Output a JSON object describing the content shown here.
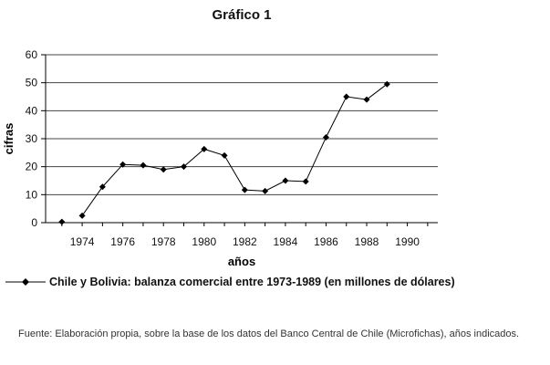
{
  "figure": {
    "title": "Gráfico 1",
    "source_note": "Fuente: Elaboración propia, sobre la base de los datos del Banco Central de Chile (Microfichas), años indicados."
  },
  "chart_data": {
    "type": "line",
    "xlabel": "años",
    "ylabel": "cifras",
    "ylim": [
      0,
      60
    ],
    "yticks": [
      0,
      10,
      20,
      30,
      40,
      50,
      60
    ],
    "xticks": [
      1974,
      1976,
      1978,
      1980,
      1982,
      1984,
      1986,
      1988,
      1990
    ],
    "grid": "horizontal",
    "legend_position": "bottom",
    "series": [
      {
        "name": "Chile y Bolivia: balanza comercial entre 1973-1989 (en millones de dólares)",
        "color": "#000000",
        "marker": "diamond",
        "points": [
          {
            "x": 1973,
            "y": 0.3
          },
          {
            "x": 1974,
            "y": 2.5
          },
          {
            "x": 1975,
            "y": 12.8
          },
          {
            "x": 1976,
            "y": 20.8
          },
          {
            "x": 1977,
            "y": 20.5
          },
          {
            "x": 1978,
            "y": 19.0
          },
          {
            "x": 1979,
            "y": 20.0
          },
          {
            "x": 1980,
            "y": 26.3
          },
          {
            "x": 1981,
            "y": 24.0
          },
          {
            "x": 1982,
            "y": 11.7
          },
          {
            "x": 1983,
            "y": 11.3
          },
          {
            "x": 1984,
            "y": 15.0
          },
          {
            "x": 1985,
            "y": 14.7
          },
          {
            "x": 1986,
            "y": 30.5
          },
          {
            "x": 1987,
            "y": 45.0
          },
          {
            "x": 1988,
            "y": 44.0
          },
          {
            "x": 1989,
            "y": 49.5
          }
        ]
      }
    ]
  }
}
